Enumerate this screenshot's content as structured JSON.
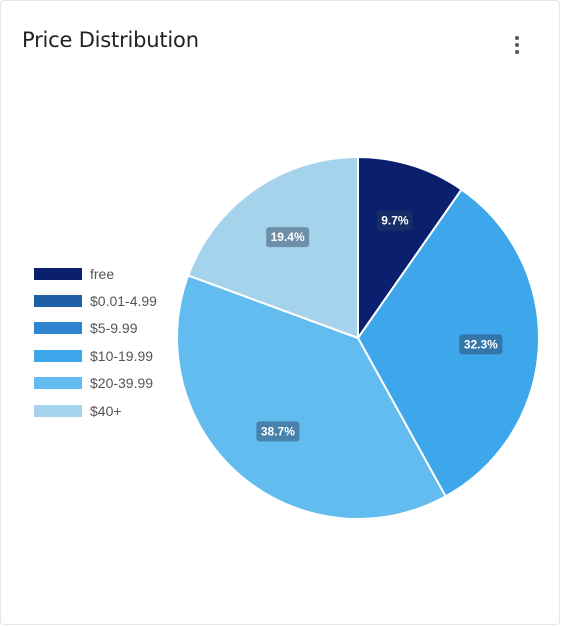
{
  "card": {
    "title": "Price Distribution",
    "menu_icon": "more-vertical-icon"
  },
  "chart_data": {
    "type": "pie",
    "title": "Price Distribution",
    "legend_position": "left",
    "start_angle_deg": 0,
    "direction": "clockwise",
    "slices": [
      {
        "label": "free",
        "value": 9.7,
        "color": "#0a1f6e",
        "label_text": "9.7%"
      },
      {
        "label": "$10-19.99",
        "value": 32.3,
        "color": "#3ea6ea",
        "label_text": "32.3%"
      },
      {
        "label": "$20-39.99",
        "value": 38.7,
        "color": "#63bcef",
        "label_text": "38.7%"
      },
      {
        "label": "$40+",
        "value": 19.4,
        "color": "#a6d3ec",
        "label_text": "19.4%"
      }
    ],
    "legend": [
      {
        "label": "free",
        "color": "#0a1f6e"
      },
      {
        "label": "$0.01-4.99",
        "color": "#1e5fa6"
      },
      {
        "label": "$5-9.99",
        "color": "#2f86cf"
      },
      {
        "label": "$10-19.99",
        "color": "#3ea6ea"
      },
      {
        "label": "$20-39.99",
        "color": "#63bcef"
      },
      {
        "label": "$40+",
        "color": "#a6d3ec"
      }
    ]
  }
}
